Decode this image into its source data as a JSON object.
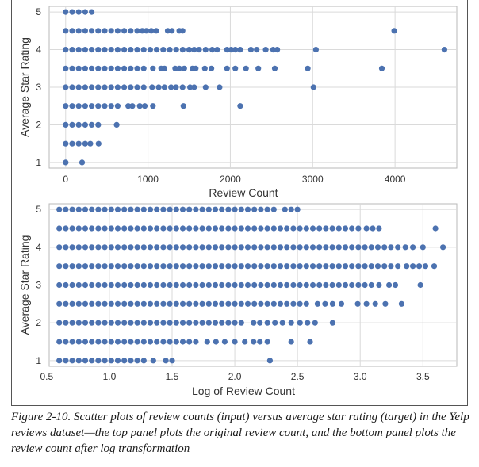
{
  "chart_data": [
    {
      "type": "scatter",
      "xlabel": "Review Count",
      "ylabel": "Average Star Rating",
      "xlim": [
        -200,
        4750
      ],
      "ylim": [
        0.85,
        5.15
      ],
      "xticks": [
        0,
        1000,
        2000,
        3000,
        4000
      ],
      "xtick_labels": [
        "0",
        "1000",
        "2000",
        "3000",
        "4000"
      ],
      "yticks": [
        1,
        2,
        3,
        4,
        5
      ],
      "ytick_labels": [
        "1",
        "2",
        "3",
        "4",
        "5"
      ],
      "grid": true,
      "marker_color": "#4c72b0",
      "rows": [
        {
          "y": 5.0,
          "dense_to": 330,
          "extra": []
        },
        {
          "y": 4.5,
          "dense_to": 900,
          "extra": [
            930,
            980,
            1040,
            1100,
            1240,
            1290,
            1380,
            1420,
            3990
          ]
        },
        {
          "y": 4.0,
          "dense_to": 1450,
          "extra": [
            1500,
            1560,
            1620,
            1700,
            1780,
            1840,
            1960,
            2010,
            2060,
            2120,
            2250,
            2320,
            2430,
            2520,
            2570,
            3040,
            4600
          ]
        },
        {
          "y": 3.5,
          "dense_to": 1000,
          "extra": [
            1060,
            1160,
            1200,
            1330,
            1380,
            1440,
            1540,
            1580,
            1690,
            1770,
            1960,
            2060,
            2190,
            2340,
            2540,
            2940,
            3840
          ]
        },
        {
          "y": 3.0,
          "dense_to": 1000,
          "extra": [
            1050,
            1130,
            1200,
            1280,
            1340,
            1420,
            1510,
            1560,
            1700,
            1870,
            3010
          ]
        },
        {
          "y": 2.5,
          "dense_to": 700,
          "extra": [
            760,
            810,
            900,
            960,
            1060,
            1430,
            2120
          ]
        },
        {
          "y": 2.0,
          "dense_to": 420,
          "extra": [
            620
          ]
        },
        {
          "y": 1.5,
          "dense_to": 250,
          "extra": [
            300,
            400
          ]
        },
        {
          "y": 1.0,
          "dense_to": 50,
          "extra": [
            200
          ]
        }
      ]
    },
    {
      "type": "scatter",
      "xlabel": "Log of Review Count",
      "ylabel": "Average Star Rating",
      "xlim": [
        0.52,
        3.77
      ],
      "ylim": [
        0.85,
        5.15
      ],
      "xticks": [
        0.5,
        1.0,
        1.5,
        2.0,
        2.5,
        3.0,
        3.5
      ],
      "xtick_labels": [
        "0.5",
        "1.0",
        "1.5",
        "2.0",
        "2.5",
        "3.0",
        "3.5"
      ],
      "yticks": [
        1,
        2,
        3,
        4,
        5
      ],
      "ytick_labels": [
        "1",
        "2",
        "3",
        "4",
        "5"
      ],
      "grid": true,
      "marker_color": "#4c72b0",
      "rows": [
        {
          "y": 5.0,
          "dense_to": 2.35,
          "extra": [
            2.4,
            2.45,
            2.5
          ]
        },
        {
          "y": 4.5,
          "dense_to": 3.0,
          "extra": [
            3.05,
            3.1,
            3.15,
            3.6
          ]
        },
        {
          "y": 4.0,
          "dense_to": 3.25,
          "extra": [
            3.3,
            3.36,
            3.42,
            3.5,
            3.66
          ]
        },
        {
          "y": 3.5,
          "dense_to": 3.25,
          "extra": [
            3.3,
            3.37,
            3.42,
            3.47,
            3.52,
            3.59
          ]
        },
        {
          "y": 3.0,
          "dense_to": 3.1,
          "extra": [
            3.15,
            3.23,
            3.28,
            3.48
          ]
        },
        {
          "y": 2.5,
          "dense_to": 2.6,
          "extra": [
            2.66,
            2.72,
            2.78,
            2.85,
            2.98,
            3.05,
            3.12,
            3.2,
            3.33
          ]
        },
        {
          "y": 2.0,
          "dense_to": 2.1,
          "extra": [
            2.15,
            2.2,
            2.26,
            2.32,
            2.38,
            2.45,
            2.52,
            2.58,
            2.64,
            2.78
          ]
        },
        {
          "y": 1.5,
          "dense_to": 1.7,
          "extra": [
            1.78,
            1.85,
            1.92,
            2.0,
            2.08,
            2.15,
            2.2,
            2.26,
            2.45,
            2.6
          ]
        },
        {
          "y": 1.0,
          "dense_to": 1.3,
          "extra": [
            1.35,
            1.45,
            1.5,
            2.28
          ]
        }
      ]
    }
  ],
  "caption": "Figure 2-10. Scatter plots of review counts (input) versus average star rating (target) in the Yelp reviews dataset—the top panel plots the original review count, and the bottom panel plots the review count after log transformation"
}
